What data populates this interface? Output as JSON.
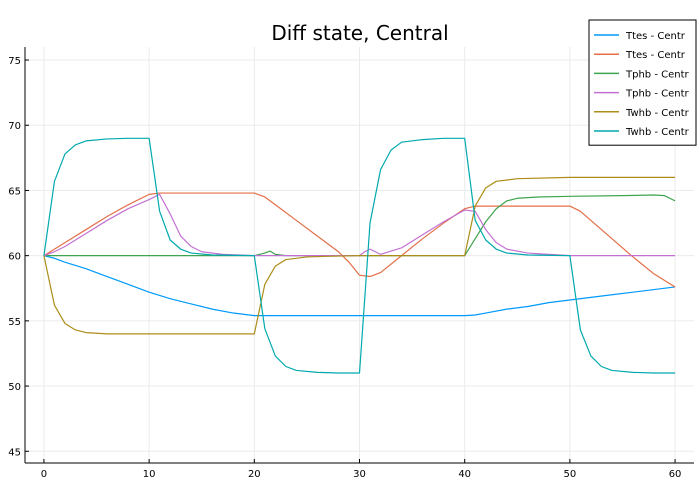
{
  "chart_data": {
    "type": "line",
    "title": "Diff state, Central",
    "xlabel": "",
    "ylabel": "",
    "xlim": [
      -1.8,
      61.8
    ],
    "ylim": [
      44.1,
      76.0
    ],
    "x_ticks": [
      0,
      10,
      20,
      30,
      40,
      50,
      60
    ],
    "y_ticks": [
      45,
      50,
      55,
      60,
      65,
      70,
      75
    ],
    "grid": true,
    "legend_position": "top-right",
    "series": [
      {
        "name": "Ttes - Centr",
        "color": "#009AFA",
        "points": [
          [
            0,
            60
          ],
          [
            1,
            59.8
          ],
          [
            2,
            59.5
          ],
          [
            4,
            59.0
          ],
          [
            6,
            58.4
          ],
          [
            8,
            57.8
          ],
          [
            10,
            57.2
          ],
          [
            12,
            56.7
          ],
          [
            14,
            56.3
          ],
          [
            16,
            55.9
          ],
          [
            18,
            55.6
          ],
          [
            20,
            55.4
          ],
          [
            21,
            55.4
          ],
          [
            25,
            55.4
          ],
          [
            30,
            55.4
          ],
          [
            35,
            55.4
          ],
          [
            40,
            55.4
          ],
          [
            41,
            55.45
          ],
          [
            42,
            55.6
          ],
          [
            44,
            55.9
          ],
          [
            46,
            56.1
          ],
          [
            48,
            56.4
          ],
          [
            50,
            56.6
          ],
          [
            52,
            56.8
          ],
          [
            54,
            57.0
          ],
          [
            56,
            57.2
          ],
          [
            58,
            57.4
          ],
          [
            60,
            57.6
          ]
        ]
      },
      {
        "name": "Ttes - Centr",
        "color": "#E36F47",
        "points": [
          [
            0,
            60
          ],
          [
            1,
            60.5
          ],
          [
            2,
            61.0
          ],
          [
            4,
            62.0
          ],
          [
            6,
            63.0
          ],
          [
            8,
            63.9
          ],
          [
            10,
            64.7
          ],
          [
            11,
            64.8
          ],
          [
            15,
            64.8
          ],
          [
            18,
            64.8
          ],
          [
            20,
            64.8
          ],
          [
            21,
            64.5
          ],
          [
            22,
            63.9
          ],
          [
            24,
            62.7
          ],
          [
            26,
            61.5
          ],
          [
            28,
            60.3
          ],
          [
            29,
            59.5
          ],
          [
            30,
            58.5
          ],
          [
            31,
            58.4
          ],
          [
            32,
            58.7
          ],
          [
            34,
            60.0
          ],
          [
            36,
            61.3
          ],
          [
            38,
            62.5
          ],
          [
            40,
            63.6
          ],
          [
            41,
            63.8
          ],
          [
            45,
            63.8
          ],
          [
            48,
            63.8
          ],
          [
            50,
            63.8
          ],
          [
            51,
            63.4
          ],
          [
            52,
            62.7
          ],
          [
            54,
            61.3
          ],
          [
            56,
            59.9
          ],
          [
            58,
            58.6
          ],
          [
            60,
            57.6
          ]
        ]
      },
      {
        "name": "Tphb - Centr",
        "color": "#3EA44E",
        "points": [
          [
            0,
            60
          ],
          [
            5,
            60
          ],
          [
            10,
            60
          ],
          [
            15,
            60
          ],
          [
            20,
            60
          ],
          [
            21,
            60.2
          ],
          [
            21.5,
            60.35
          ],
          [
            22,
            60.1
          ],
          [
            23,
            60
          ],
          [
            30,
            60
          ],
          [
            35,
            60
          ],
          [
            40,
            60
          ],
          [
            41,
            61.3
          ],
          [
            42,
            62.6
          ],
          [
            43,
            63.6
          ],
          [
            44,
            64.2
          ],
          [
            45,
            64.4
          ],
          [
            47,
            64.5
          ],
          [
            50,
            64.55
          ],
          [
            55,
            64.6
          ],
          [
            58,
            64.65
          ],
          [
            59,
            64.6
          ],
          [
            60,
            64.2
          ]
        ]
      },
      {
        "name": "Tphb - Centr",
        "color": "#C271D2",
        "points": [
          [
            0,
            60
          ],
          [
            1,
            60.3
          ],
          [
            2,
            60.7
          ],
          [
            4,
            61.7
          ],
          [
            6,
            62.7
          ],
          [
            8,
            63.6
          ],
          [
            10,
            64.3
          ],
          [
            11,
            64.7
          ],
          [
            12,
            63.2
          ],
          [
            13,
            61.5
          ],
          [
            14,
            60.7
          ],
          [
            15,
            60.3
          ],
          [
            17,
            60.1
          ],
          [
            20,
            60
          ],
          [
            25,
            60
          ],
          [
            30,
            60
          ],
          [
            30.5,
            60.3
          ],
          [
            31,
            60.5
          ],
          [
            32,
            60.1
          ],
          [
            34,
            60.6
          ],
          [
            36,
            61.6
          ],
          [
            38,
            62.6
          ],
          [
            40,
            63.5
          ],
          [
            41,
            63.4
          ],
          [
            42,
            62.0
          ],
          [
            43,
            61.0
          ],
          [
            44,
            60.5
          ],
          [
            46,
            60.2
          ],
          [
            48,
            60.1
          ],
          [
            50,
            60
          ],
          [
            55,
            60
          ],
          [
            60,
            60
          ]
        ]
      },
      {
        "name": "Twhb - Centr",
        "color": "#AC8D18",
        "points": [
          [
            0,
            60
          ],
          [
            1,
            56.2
          ],
          [
            2,
            54.8
          ],
          [
            3,
            54.3
          ],
          [
            4,
            54.1
          ],
          [
            6,
            54.0
          ],
          [
            10,
            54.0
          ],
          [
            15,
            54.0
          ],
          [
            20,
            54.0
          ],
          [
            21,
            57.8
          ],
          [
            22,
            59.2
          ],
          [
            23,
            59.7
          ],
          [
            25,
            59.9
          ],
          [
            27,
            59.95
          ],
          [
            30,
            60
          ],
          [
            35,
            60
          ],
          [
            40,
            60
          ],
          [
            41,
            63.8
          ],
          [
            42,
            65.2
          ],
          [
            43,
            65.7
          ],
          [
            45,
            65.9
          ],
          [
            50,
            66.0
          ],
          [
            55,
            66.0
          ],
          [
            60,
            66.0
          ]
        ]
      },
      {
        "name": "Twhb - Centr",
        "color": "#00A9AD",
        "points": [
          [
            0,
            60
          ],
          [
            1,
            65.7
          ],
          [
            2,
            67.8
          ],
          [
            3,
            68.5
          ],
          [
            4,
            68.8
          ],
          [
            6,
            68.95
          ],
          [
            8,
            69.0
          ],
          [
            10,
            69.0
          ],
          [
            11,
            63.4
          ],
          [
            12,
            61.2
          ],
          [
            13,
            60.5
          ],
          [
            14,
            60.2
          ],
          [
            16,
            60.05
          ],
          [
            20,
            60.0
          ],
          [
            21,
            54.4
          ],
          [
            22,
            52.3
          ],
          [
            23,
            51.5
          ],
          [
            24,
            51.2
          ],
          [
            26,
            51.05
          ],
          [
            28,
            51.0
          ],
          [
            30,
            51.0
          ],
          [
            31,
            62.5
          ],
          [
            32,
            66.6
          ],
          [
            33,
            68.1
          ],
          [
            34,
            68.7
          ],
          [
            36,
            68.9
          ],
          [
            38,
            69.0
          ],
          [
            40,
            69.0
          ],
          [
            41,
            62.7
          ],
          [
            42,
            61.2
          ],
          [
            43,
            60.5
          ],
          [
            44,
            60.2
          ],
          [
            46,
            60.05
          ],
          [
            50,
            60.0
          ],
          [
            51,
            54.3
          ],
          [
            52,
            52.3
          ],
          [
            53,
            51.5
          ],
          [
            54,
            51.2
          ],
          [
            56,
            51.05
          ],
          [
            58,
            51.0
          ],
          [
            60,
            51.0
          ]
        ]
      }
    ]
  }
}
